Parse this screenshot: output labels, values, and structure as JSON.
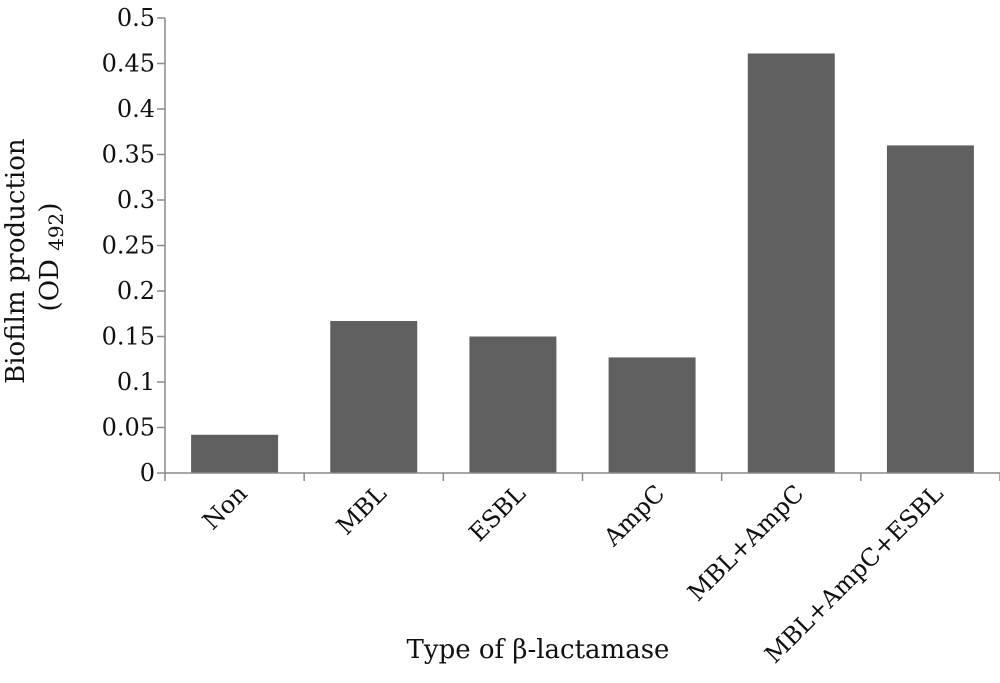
{
  "chart_data": {
    "type": "bar",
    "title": "",
    "xlabel": "Type of β-lactamase",
    "ylabel_line1": "Biofilm production",
    "ylabel_line2_prefix": "(OD ",
    "ylabel_line2_sub": "492",
    "ylabel_line2_suffix": ")",
    "categories": [
      "Non",
      "MBL",
      "ESBL",
      "AmpC",
      "MBL+AmpC",
      "MBL+AmpC+ESBL"
    ],
    "values": [
      0.042,
      0.167,
      0.15,
      0.127,
      0.461,
      0.36
    ],
    "ylim": [
      0,
      0.5
    ],
    "yticks": [
      "0",
      "0.05",
      "0.1",
      "0.15",
      "0.2",
      "0.25",
      "0.3",
      "0.35",
      "0.4",
      "0.45",
      "0.5"
    ],
    "grid": false,
    "legend": "none",
    "bar_color": "#5f5f5f",
    "axis_color": "#8a8a8a"
  }
}
